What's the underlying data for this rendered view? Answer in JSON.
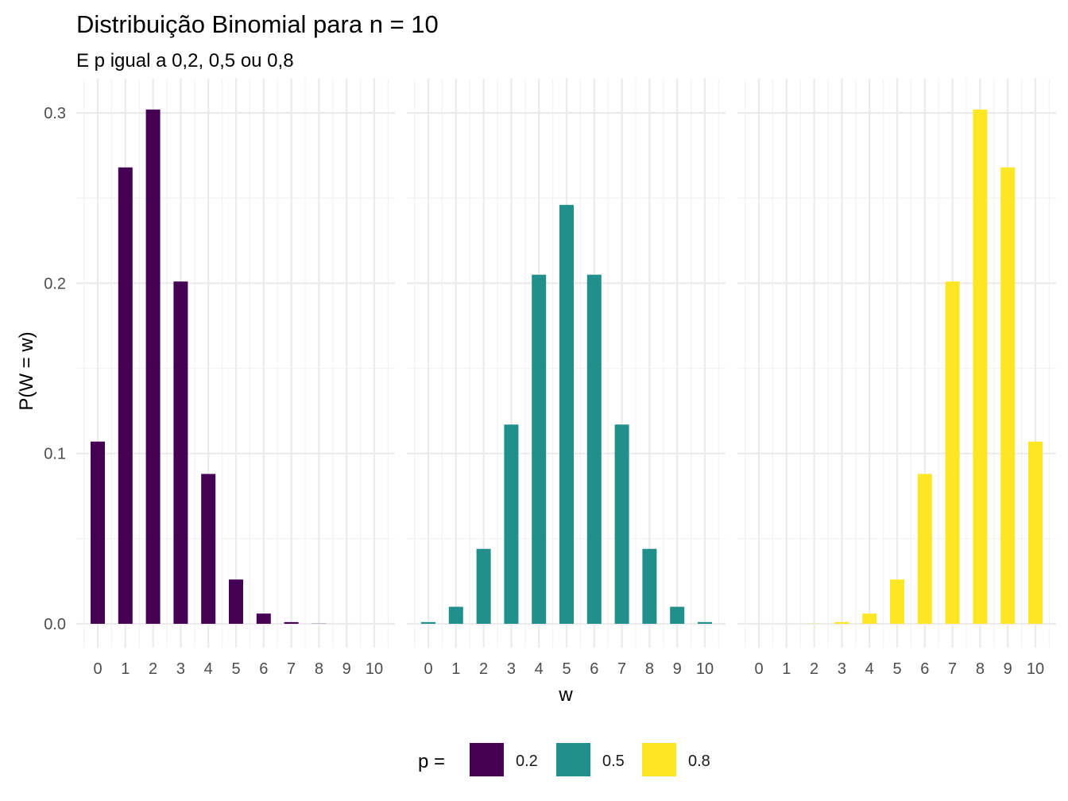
{
  "chart_data": {
    "type": "bar",
    "title": "Distribuição Binomial para n = 10",
    "subtitle": "E p igual a 0,2, 0,5 ou 0,8",
    "xlabel": "w",
    "ylabel": "P(W = w)",
    "ylim": [
      0,
      0.31
    ],
    "yticks": [
      0.0,
      0.1,
      0.2,
      0.3
    ],
    "ytick_labels": [
      "0.0",
      "0.1",
      "0.2",
      "0.3"
    ],
    "categories": [
      "0",
      "1",
      "2",
      "3",
      "4",
      "5",
      "6",
      "7",
      "8",
      "9",
      "10"
    ],
    "grid": true,
    "legend": {
      "title": "p =",
      "position": "bottom",
      "entries": [
        "0.2",
        "0.5",
        "0.8"
      ]
    },
    "series": [
      {
        "name": "0.2",
        "color": "#440154",
        "values": [
          0.107,
          0.268,
          0.302,
          0.201,
          0.088,
          0.026,
          0.006,
          0.001,
          0.0001,
          0.0,
          0.0
        ]
      },
      {
        "name": "0.5",
        "color": "#21908C",
        "values": [
          0.001,
          0.01,
          0.044,
          0.117,
          0.205,
          0.246,
          0.205,
          0.117,
          0.044,
          0.01,
          0.001
        ]
      },
      {
        "name": "0.8",
        "color": "#FDE725",
        "values": [
          0.0,
          0.0,
          0.0001,
          0.001,
          0.006,
          0.026,
          0.088,
          0.201,
          0.302,
          0.268,
          0.107
        ]
      }
    ]
  }
}
